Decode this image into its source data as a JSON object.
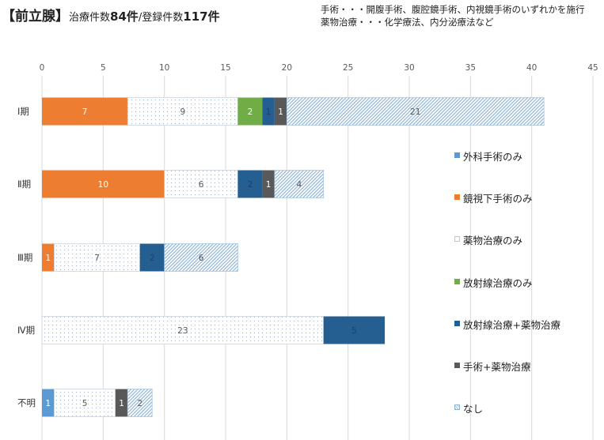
{
  "title": {
    "organ": "【前立腺】",
    "treat_label": "治療件数",
    "treat_count": "84件",
    "sep": "/",
    "reg_label": "登録件数",
    "reg_count": "117件"
  },
  "notes": [
    "手術・・・開腹手術、腹腔鏡手術、内視鏡手術のいずれかを施行",
    "薬物治療・・・化学療法、内分泌療法など"
  ],
  "legend": [
    {
      "label": "外科手術のみ",
      "color": "#5b9bd5",
      "pattern": "solid"
    },
    {
      "label": "鏡視下手術のみ",
      "color": "#ed7d31",
      "pattern": "solid"
    },
    {
      "label": "薬物治療のみ",
      "color": "#ffffff",
      "pattern": "dots"
    },
    {
      "label": "放射線治療のみ",
      "color": "#70ad47",
      "pattern": "solid"
    },
    {
      "label": "放射線治療+薬物治療",
      "color": "#255e91",
      "pattern": "solid"
    },
    {
      "label": "手術+薬物治療",
      "color": "#595959",
      "pattern": "solid"
    },
    {
      "label": "なし",
      "color": "#9dc3e6",
      "pattern": "hatch"
    }
  ],
  "chart_data": {
    "type": "bar",
    "orientation": "horizontal",
    "stacked": true,
    "categories": [
      "Ⅰ期",
      "Ⅱ期",
      "Ⅲ期",
      "Ⅳ期",
      "不明"
    ],
    "xlim": [
      0,
      45
    ],
    "xticks": [
      0,
      5,
      10,
      15,
      20,
      25,
      30,
      35,
      40,
      45
    ],
    "grid": true,
    "legend_position": "right",
    "series": [
      {
        "name": "外科手術のみ",
        "values": [
          0,
          0,
          0,
          0,
          1
        ]
      },
      {
        "name": "鏡視下手術のみ",
        "values": [
          7,
          10,
          1,
          0,
          0
        ]
      },
      {
        "name": "薬物治療のみ",
        "values": [
          9,
          6,
          7,
          23,
          5
        ]
      },
      {
        "name": "放射線治療のみ",
        "values": [
          2,
          0,
          0,
          0,
          0
        ]
      },
      {
        "name": "放射線治療+薬物治療",
        "values": [
          1,
          2,
          2,
          5,
          0
        ]
      },
      {
        "name": "手術+薬物治療",
        "values": [
          1,
          1,
          0,
          0,
          1
        ]
      },
      {
        "name": "なし",
        "values": [
          21,
          4,
          6,
          0,
          2
        ]
      }
    ]
  }
}
